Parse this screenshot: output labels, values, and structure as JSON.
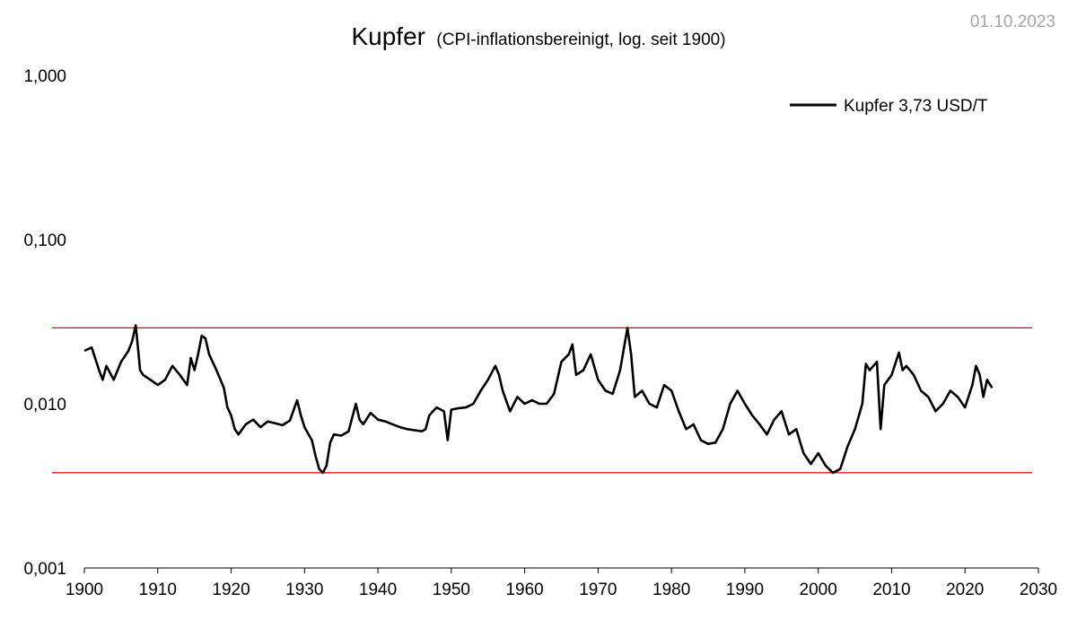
{
  "date": "01.10.2023",
  "chart_data": {
    "type": "line",
    "title": "Kupfer",
    "subtitle": "(CPI-inflationsbereinigt, log. seit 1900)",
    "y_scale": "log",
    "ylim": [
      0.001,
      1.0
    ],
    "y_ticks": [
      {
        "value": 1.0,
        "label": "1,000"
      },
      {
        "value": 0.1,
        "label": "0,100"
      },
      {
        "value": 0.01,
        "label": "0,010"
      },
      {
        "value": 0.001,
        "label": "0,001"
      }
    ],
    "xlim": [
      1900,
      2030
    ],
    "x_ticks": [
      "1900",
      "1910",
      "1920",
      "1930",
      "1940",
      "1950",
      "1960",
      "1970",
      "1980",
      "1990",
      "2000",
      "2010",
      "2020",
      "2030"
    ],
    "legend": {
      "position": "top-right",
      "entries": [
        "Kupfer 3,73 USD/T"
      ]
    },
    "grid": false,
    "series": [
      {
        "name": "Kupfer 3,73 USD/T",
        "color": "#000000",
        "x": [
          1900.0,
          1901.0,
          1902.0,
          1902.5,
          1903.0,
          1904.0,
          1905.0,
          1906.0,
          1906.5,
          1907.0,
          1907.3,
          1907.6,
          1908.0,
          1909.0,
          1910.0,
          1911.0,
          1912.0,
          1913.0,
          1914.0,
          1914.5,
          1915.0,
          1915.5,
          1916.0,
          1916.5,
          1917.0,
          1918.0,
          1919.0,
          1919.5,
          1920.0,
          1920.5,
          1921.0,
          1922.0,
          1923.0,
          1924.0,
          1925.0,
          1926.0,
          1927.0,
          1928.0,
          1929.0,
          1929.5,
          1930.0,
          1931.0,
          1931.5,
          1932.0,
          1932.5,
          1933.0,
          1933.5,
          1934.0,
          1935.0,
          1936.0,
          1937.0,
          1937.5,
          1938.0,
          1939.0,
          1940.0,
          1941.0,
          1942.0,
          1943.0,
          1944.0,
          1945.0,
          1946.0,
          1946.5,
          1947.0,
          1948.0,
          1949.0,
          1949.5,
          1950.0,
          1951.0,
          1952.0,
          1953.0,
          1954.0,
          1955.0,
          1956.0,
          1956.5,
          1957.0,
          1958.0,
          1959.0,
          1960.0,
          1961.0,
          1962.0,
          1963.0,
          1964.0,
          1965.0,
          1966.0,
          1966.5,
          1967.0,
          1968.0,
          1969.0,
          1970.0,
          1971.0,
          1972.0,
          1973.0,
          1974.0,
          1974.5,
          1975.0,
          1976.0,
          1977.0,
          1978.0,
          1979.0,
          1980.0,
          1981.0,
          1982.0,
          1983.0,
          1984.0,
          1985.0,
          1986.0,
          1987.0,
          1988.0,
          1989.0,
          1990.0,
          1991.0,
          1992.0,
          1993.0,
          1994.0,
          1995.0,
          1996.0,
          1997.0,
          1998.0,
          1999.0,
          2000.0,
          2001.0,
          2002.0,
          2003.0,
          2004.0,
          2005.0,
          2006.0,
          2006.5,
          2007.0,
          2008.0,
          2008.5,
          2009.0,
          2010.0,
          2011.0,
          2011.5,
          2012.0,
          2013.0,
          2014.0,
          2015.0,
          2016.0,
          2017.0,
          2018.0,
          2019.0,
          2020.0,
          2021.0,
          2021.5,
          2022.0,
          2022.5,
          2023.0,
          2023.7
        ],
        "y": [
          0.021,
          0.022,
          0.016,
          0.014,
          0.017,
          0.014,
          0.018,
          0.021,
          0.024,
          0.03,
          0.022,
          0.016,
          0.015,
          0.014,
          0.013,
          0.014,
          0.017,
          0.015,
          0.013,
          0.019,
          0.016,
          0.02,
          0.026,
          0.025,
          0.02,
          0.016,
          0.0125,
          0.0095,
          0.0085,
          0.007,
          0.0065,
          0.0075,
          0.008,
          0.0072,
          0.0078,
          0.0076,
          0.0074,
          0.0079,
          0.0105,
          0.0085,
          0.0072,
          0.006,
          0.0048,
          0.004,
          0.0038,
          0.0042,
          0.0058,
          0.0065,
          0.0064,
          0.0068,
          0.01,
          0.008,
          0.0075,
          0.0088,
          0.008,
          0.0078,
          0.0075,
          0.0072,
          0.007,
          0.0069,
          0.0068,
          0.007,
          0.0085,
          0.0095,
          0.009,
          0.006,
          0.0092,
          0.0094,
          0.0095,
          0.01,
          0.012,
          0.014,
          0.017,
          0.015,
          0.012,
          0.009,
          0.011,
          0.01,
          0.0105,
          0.01,
          0.01,
          0.0115,
          0.018,
          0.02,
          0.023,
          0.015,
          0.016,
          0.02,
          0.014,
          0.012,
          0.0115,
          0.016,
          0.029,
          0.02,
          0.011,
          0.012,
          0.01,
          0.0095,
          0.013,
          0.012,
          0.009,
          0.007,
          0.0075,
          0.006,
          0.0057,
          0.0058,
          0.007,
          0.01,
          0.012,
          0.01,
          0.0085,
          0.0075,
          0.0065,
          0.008,
          0.009,
          0.0065,
          0.007,
          0.005,
          0.0043,
          0.005,
          0.0042,
          0.0038,
          0.004,
          0.0055,
          0.007,
          0.01,
          0.0175,
          0.016,
          0.018,
          0.007,
          0.013,
          0.015,
          0.0205,
          0.016,
          0.017,
          0.015,
          0.012,
          0.011,
          0.009,
          0.01,
          0.012,
          0.011,
          0.0095,
          0.013,
          0.017,
          0.015,
          0.011,
          0.014,
          0.0125
        ]
      }
    ],
    "reference_lines": [
      {
        "value": 0.029,
        "color": "#e10000"
      },
      {
        "value": 0.0038,
        "color": "#e10000"
      }
    ]
  }
}
